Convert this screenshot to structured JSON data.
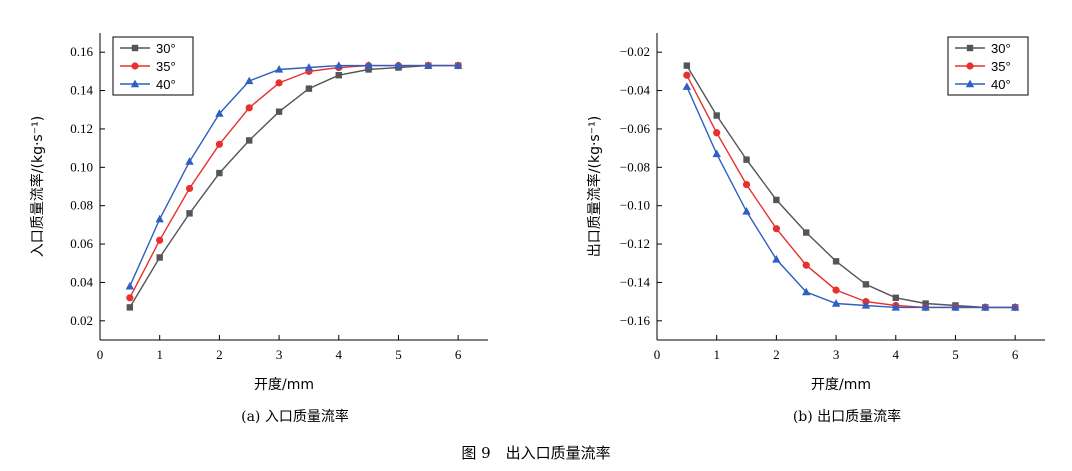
{
  "figure_caption": "图 9　出入口质量流率",
  "chart_data": [
    {
      "type": "line",
      "caption": "(a) 入口质量流率",
      "xlabel": "开度/mm",
      "ylabel": "入口质量流率/(kg·s⁻¹)",
      "xlim": [
        0,
        6.5
      ],
      "ylim": [
        0.01,
        0.17
      ],
      "xticks": [
        0,
        1,
        2,
        3,
        4,
        5,
        6
      ],
      "xtick_labels": [
        "0",
        "1",
        "2",
        "3",
        "4",
        "5",
        "6"
      ],
      "yticks": [
        0.02,
        0.04,
        0.06,
        0.08,
        0.1,
        0.12,
        0.14,
        0.16
      ],
      "ytick_labels": [
        "0.02",
        "0.04",
        "0.06",
        "0.08",
        "0.10",
        "0.12",
        "0.14",
        "0.16"
      ],
      "legend_position": "top-left",
      "x": [
        0.5,
        1,
        1.5,
        2,
        2.5,
        3,
        3.5,
        4,
        4.5,
        5,
        5.5,
        6
      ],
      "series": [
        {
          "name": "30°",
          "color": "#555555",
          "marker": "square",
          "values": [
            0.027,
            0.053,
            0.076,
            0.097,
            0.114,
            0.129,
            0.141,
            0.148,
            0.151,
            0.152,
            0.153,
            0.153
          ]
        },
        {
          "name": "35°",
          "color": "#e8312f",
          "marker": "circle",
          "values": [
            0.032,
            0.062,
            0.089,
            0.112,
            0.131,
            0.144,
            0.15,
            0.152,
            0.153,
            0.153,
            0.153,
            0.153
          ]
        },
        {
          "name": "40°",
          "color": "#2f5fc0",
          "marker": "triangle",
          "values": [
            0.038,
            0.073,
            0.103,
            0.128,
            0.145,
            0.151,
            0.152,
            0.153,
            0.153,
            0.153,
            0.153,
            0.153
          ]
        }
      ]
    },
    {
      "type": "line",
      "caption": "(b) 出口质量流率",
      "xlabel": "开度/mm",
      "ylabel": "出口质量流率/(kg·s⁻¹)",
      "xlim": [
        0,
        6.5
      ],
      "ylim": [
        -0.17,
        -0.01
      ],
      "xticks": [
        0,
        1,
        2,
        3,
        4,
        5,
        6
      ],
      "xtick_labels": [
        "0",
        "1",
        "2",
        "3",
        "4",
        "5",
        "6"
      ],
      "yticks": [
        -0.16,
        -0.14,
        -0.12,
        -0.1,
        -0.08,
        -0.06,
        -0.04,
        -0.02
      ],
      "ytick_labels": [
        "−0.16",
        "−0.14",
        "−0.12",
        "−0.10",
        "−0.08",
        "−0.06",
        "−0.04",
        "−0.02"
      ],
      "legend_position": "top-right",
      "x": [
        0.5,
        1,
        1.5,
        2,
        2.5,
        3,
        3.5,
        4,
        4.5,
        5,
        5.5,
        6
      ],
      "series": [
        {
          "name": "30°",
          "color": "#555555",
          "marker": "square",
          "values": [
            -0.027,
            -0.053,
            -0.076,
            -0.097,
            -0.114,
            -0.129,
            -0.141,
            -0.148,
            -0.151,
            -0.152,
            -0.153,
            -0.153
          ]
        },
        {
          "name": "35°",
          "color": "#e8312f",
          "marker": "circle",
          "values": [
            -0.032,
            -0.062,
            -0.089,
            -0.112,
            -0.131,
            -0.144,
            -0.15,
            -0.152,
            -0.153,
            -0.153,
            -0.153,
            -0.153
          ]
        },
        {
          "name": "40°",
          "color": "#2f5fc0",
          "marker": "triangle",
          "values": [
            -0.038,
            -0.073,
            -0.103,
            -0.128,
            -0.145,
            -0.151,
            -0.152,
            -0.153,
            -0.153,
            -0.153,
            -0.153,
            -0.153
          ]
        }
      ]
    }
  ]
}
